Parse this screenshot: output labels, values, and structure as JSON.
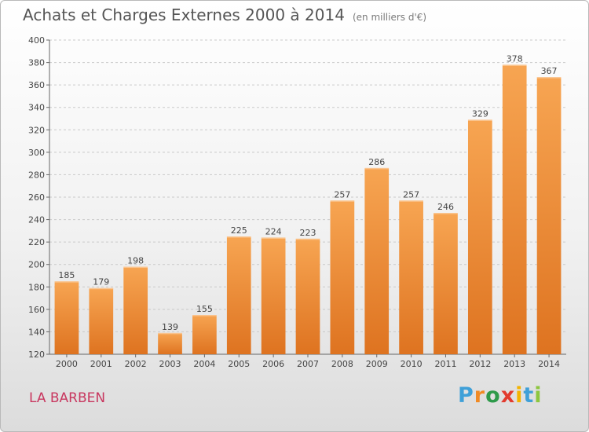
{
  "header": {
    "title": "Achats et Charges Externes 2000 à 2014",
    "subtitle": "(en milliers d'€)"
  },
  "footer": {
    "town": "LA BARBEN",
    "logo_letters": [
      "P",
      "r",
      "o",
      "x",
      "i",
      "t",
      "i"
    ],
    "logo_colors": [
      "#3fa0d8",
      "#f08a24",
      "#2e9a4a",
      "#e23b2e",
      "#f4b400",
      "#3fa0d8",
      "#8dc63f"
    ]
  },
  "chart_data": {
    "type": "bar",
    "categories": [
      "2000",
      "2001",
      "2002",
      "2003",
      "2004",
      "2005",
      "2006",
      "2007",
      "2008",
      "2009",
      "2010",
      "2011",
      "2012",
      "2013",
      "2014"
    ],
    "values": [
      185,
      179,
      198,
      139,
      155,
      225,
      224,
      223,
      257,
      286,
      257,
      246,
      329,
      378,
      367
    ],
    "ylim": [
      120,
      400
    ],
    "yticks": [
      120,
      140,
      160,
      180,
      200,
      220,
      240,
      260,
      280,
      300,
      320,
      340,
      360,
      380,
      400
    ],
    "title": "Achats et Charges Externes 2000 à 2014",
    "subtitle": "(en milliers d'€)",
    "bar_color_top": "#f7a552",
    "bar_color_bottom": "#de7320",
    "grid": "horizontal dashed"
  }
}
